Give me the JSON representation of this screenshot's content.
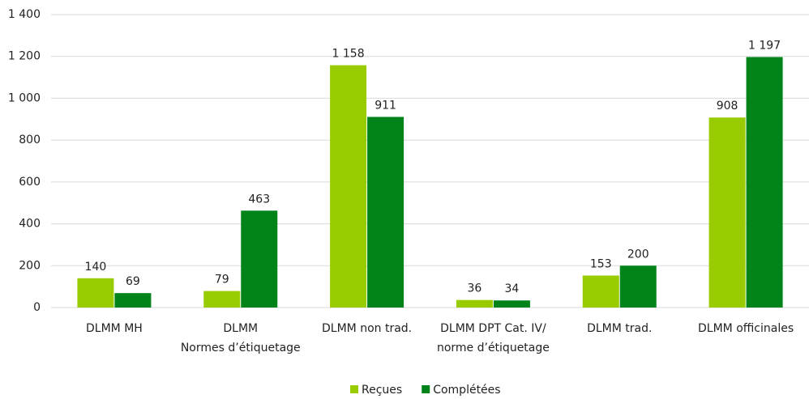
{
  "chart_data": {
    "type": "bar",
    "categories": [
      [
        "DLMM MH"
      ],
      [
        "DLMM",
        "Normes d’étiquetage"
      ],
      [
        "DLMM non trad."
      ],
      [
        "DLMM DPT Cat. IV/",
        "norme d’étiquetage"
      ],
      [
        "DLMM trad."
      ],
      [
        "DLMM officinales"
      ]
    ],
    "series": [
      {
        "name": "Reçues",
        "color": "#99cc00",
        "values": [
          140,
          79,
          1158,
          36,
          153,
          908
        ],
        "value_labels": [
          "140",
          "79",
          "1 158",
          "36",
          "153",
          "908"
        ]
      },
      {
        "name": "Complétées",
        "color": "#00841a",
        "values": [
          69,
          463,
          911,
          34,
          200,
          1197
        ],
        "value_labels": [
          "69",
          "463",
          "911",
          "34",
          "200",
          "1 197"
        ]
      }
    ],
    "ylim": [
      0,
      1400
    ],
    "yticks": [
      0,
      200,
      400,
      600,
      800,
      {
        "value": 1000,
        "label": "1 000"
      },
      {
        "value": 1200,
        "label": "1 200"
      },
      {
        "value": 1400,
        "label": "1 400"
      }
    ],
    "grid": true,
    "legend": "bottom"
  }
}
